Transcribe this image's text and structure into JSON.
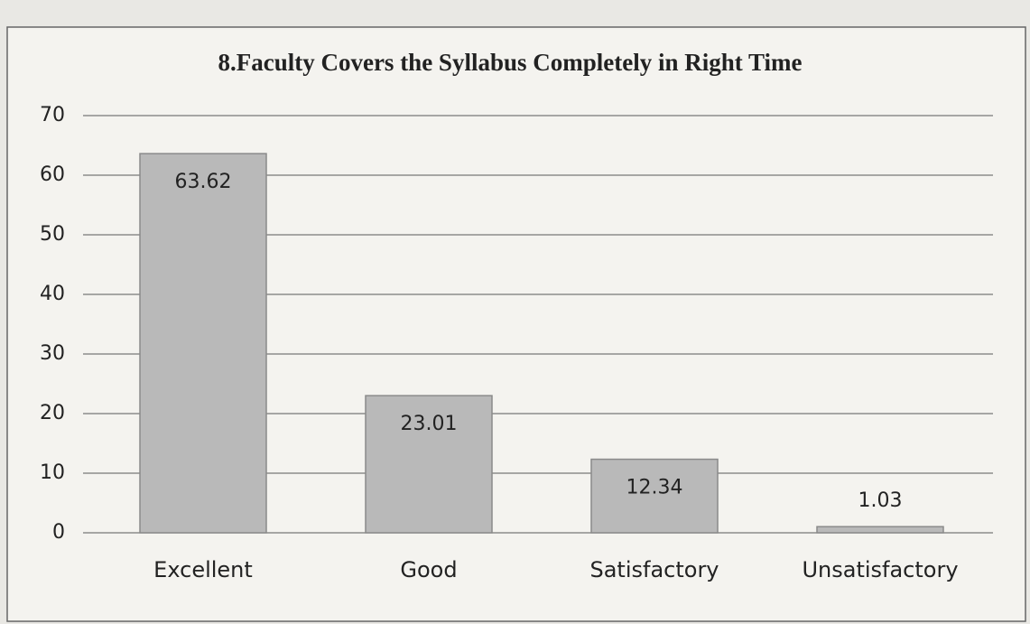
{
  "chart_data": {
    "type": "bar",
    "title": "8.Faculty Covers the Syllabus Completely in Right Time",
    "categories": [
      "Excellent",
      "Good",
      "Satisfactory",
      "Unsatisfactory"
    ],
    "values": [
      63.62,
      23.01,
      12.34,
      1.03
    ],
    "color": "#b9b9b9",
    "ylim": [
      0,
      70
    ],
    "yticks": [
      0,
      10,
      20,
      30,
      40,
      50,
      60,
      70
    ],
    "grid": true
  }
}
